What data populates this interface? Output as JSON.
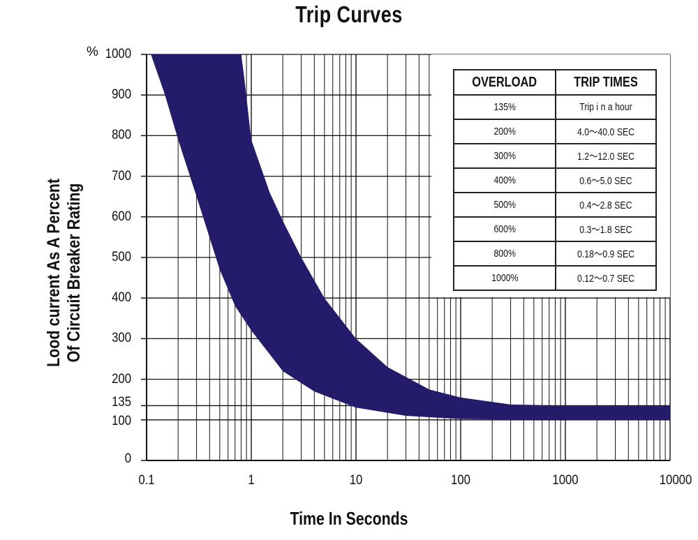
{
  "chart_data": {
    "type": "area",
    "title": "Trip Curves",
    "xlabel": "Time In Seconds",
    "ylabel_lines": [
      "Lood current As A Percent",
      "Of Circuit Breaker Rating"
    ],
    "y_unit_label": "%",
    "x_scale": "log",
    "xlim": [
      0.1,
      10000
    ],
    "ylim": [
      0,
      1000
    ],
    "grid": true,
    "x_ticks": [
      "0.1",
      "1",
      "10",
      "100",
      "1000",
      "10000"
    ],
    "y_ticks": [
      "0",
      "100",
      "135",
      "200",
      "300",
      "400",
      "500",
      "600",
      "700",
      "800",
      "900",
      "1000"
    ],
    "band_color": "#241c6a",
    "series": [
      {
        "boundary": "lower",
        "points": [
          [
            0.11,
            1000
          ],
          [
            0.15,
            900
          ],
          [
            0.2,
            790
          ],
          [
            0.3,
            650
          ],
          [
            0.5,
            470
          ],
          [
            0.7,
            380
          ],
          [
            1,
            320
          ],
          [
            2,
            220
          ],
          [
            4,
            170
          ],
          [
            10,
            130
          ],
          [
            30,
            110
          ],
          [
            100,
            102
          ],
          [
            1000,
            100
          ],
          [
            10000,
            100
          ]
        ]
      },
      {
        "boundary": "upper",
        "points": [
          [
            0.8,
            1000
          ],
          [
            0.85,
            950
          ],
          [
            1,
            790
          ],
          [
            1.5,
            660
          ],
          [
            2,
            590
          ],
          [
            3,
            500
          ],
          [
            5,
            400
          ],
          [
            10,
            300
          ],
          [
            20,
            230
          ],
          [
            50,
            175
          ],
          [
            100,
            155
          ],
          [
            300,
            138
          ],
          [
            1000,
            135
          ],
          [
            10000,
            135
          ]
        ]
      }
    ]
  },
  "table": {
    "headers": [
      "OVERLOAD",
      "TRIP TIMES"
    ],
    "rows": [
      [
        "135%",
        "Trip i n a hour"
      ],
      [
        "200%",
        "4.0～40.0 SEC"
      ],
      [
        "300%",
        "1.2～12.0 SEC"
      ],
      [
        "400%",
        "0.6～5.0 SEC"
      ],
      [
        "500%",
        "0.4～2.8 SEC"
      ],
      [
        "600%",
        "0.3～1.8 SEC"
      ],
      [
        "800%",
        "0.18～0.9 SEC"
      ],
      [
        "1000%",
        "0.12～0.7 SEC"
      ]
    ]
  }
}
